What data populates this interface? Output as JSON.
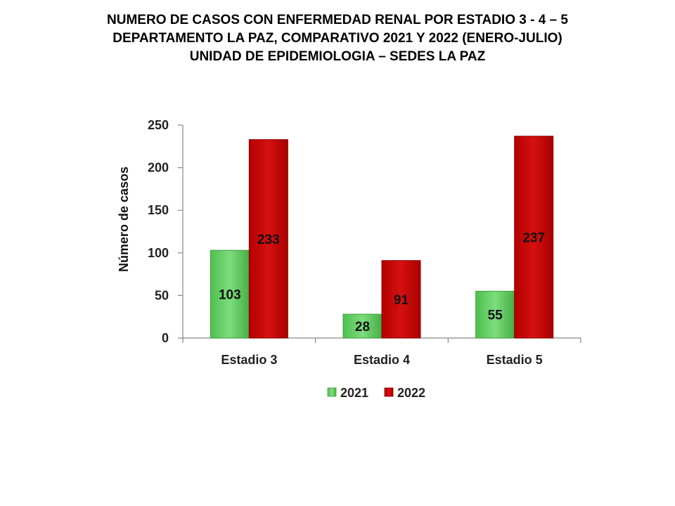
{
  "title_lines": [
    "NUMERO DE CASOS CON ENFERMEDAD  RENAL POR ESTADIO 3 - 4 – 5",
    "DEPARTAMENTO  LA PAZ, COMPARATIVO  2021 Y 2022 (ENERO-JULIO)",
    "UNIDAD DE EPIDEMIOLOGIA – SEDES LA PAZ"
  ],
  "chart_data": {
    "type": "bar",
    "categories": [
      "Estadio 3",
      "Estadio 4",
      "Estadio 5"
    ],
    "series": [
      {
        "name": "2021",
        "values": [
          103,
          28,
          55
        ],
        "color": "#5cc85c"
      },
      {
        "name": "2022",
        "values": [
          233,
          91,
          237
        ],
        "color": "#c00000"
      }
    ],
    "xlabel": "",
    "ylabel": "Número de casos",
    "ylim": [
      0,
      250
    ],
    "yticks": [
      0,
      50,
      100,
      150,
      200,
      250
    ],
    "grid": false,
    "legend_position": "bottom",
    "data_labels": true
  }
}
